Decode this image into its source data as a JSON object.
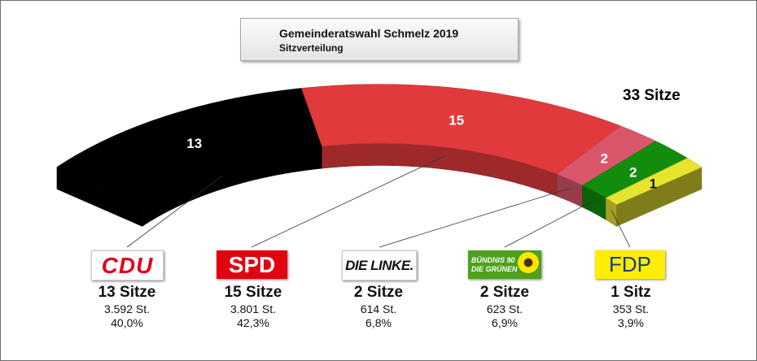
{
  "title": "Gemeinderatswahl Schmelz 2019",
  "subtitle": "Sitzverteilung",
  "total_label": "33 Sitze",
  "chart_data": {
    "type": "pie",
    "variant": "3d-half-ring seat distribution",
    "title": "Gemeinderatswahl Schmelz 2019",
    "subtitle": "Sitzverteilung",
    "total_seats": 33,
    "series": [
      {
        "party": "CDU",
        "seats": 13,
        "seat_label": "13",
        "seats_text": "13 Sitze",
        "votes": "3.592 St.",
        "percent": "40,0%",
        "color": "#000000"
      },
      {
        "party": "SPD",
        "seats": 15,
        "seat_label": "15",
        "seats_text": "15 Sitze",
        "votes": "3.801 St.",
        "percent": "42,3%",
        "color": "#e03a3c"
      },
      {
        "party": "DIE LINKE.",
        "seats": 2,
        "seat_label": "2",
        "seats_text": "2 Sitze",
        "votes": "614 St.",
        "percent": "6,8%",
        "color": "#d9566b"
      },
      {
        "party": "BÜNDNIS 90 DIE GRÜNEN",
        "seats": 2,
        "seat_label": "2",
        "seats_text": "2 Sitze",
        "votes": "623 St.",
        "percent": "6,9%",
        "color": "#128c0d"
      },
      {
        "party": "FDP",
        "seats": 1,
        "seat_label": "1",
        "seats_text": "1 Sitz",
        "votes": "353 St.",
        "percent": "3,9%",
        "color": "#e6e42e"
      }
    ]
  },
  "logos": {
    "cdu": {
      "text": "CDU",
      "color": "#e2001a",
      "background": "#ffffff"
    },
    "spd": {
      "text": "SPD",
      "color": "#ffffff",
      "background": "#e3000f"
    },
    "linke": {
      "text": "DIE LINKE.",
      "color": "#111111",
      "background": "#ffffff"
    },
    "gruene": {
      "line1": "BÜNDNIS 90",
      "line2": "DIE GRÜNEN",
      "color": "#ffffff",
      "background": "#4ea01e"
    },
    "fdp": {
      "text": "FDP",
      "color": "#1d3a8a",
      "background": "#ffee00"
    }
  }
}
